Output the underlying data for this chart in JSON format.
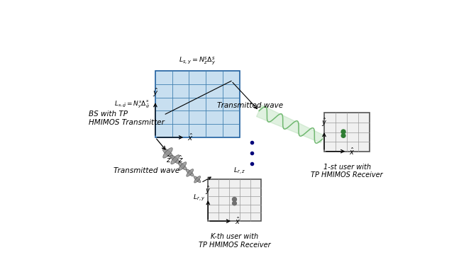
{
  "bg_color": "#ffffff",
  "grid_face_color": "#c8dff0",
  "grid_edge_color": "#2060a0",
  "grid_line_color": "#4080b0",
  "wave_color_green": "#70b870",
  "wave_fill_green": "#a8d8a8",
  "wave_color_gray": "#909090",
  "antenna_color_green": "#2e7d32",
  "antenna_color_gray": "#707070",
  "bs_label": "BS with TP\nHMIMOS Transmitter",
  "user1_label": "1-st user with\nTP HMIMOS Receiver",
  "userk_label": "K-th user with\nTP HMIMOS Receiver",
  "tx_wave_label": "Transmitted wave",
  "tx_wave_label2": "Transmitted wave",
  "dot_color": "#00007a",
  "user1_grid_color": "#555555",
  "user1_grid_line": "#999999",
  "userk_grid_color": "#555555",
  "userk_grid_line": "#999999"
}
